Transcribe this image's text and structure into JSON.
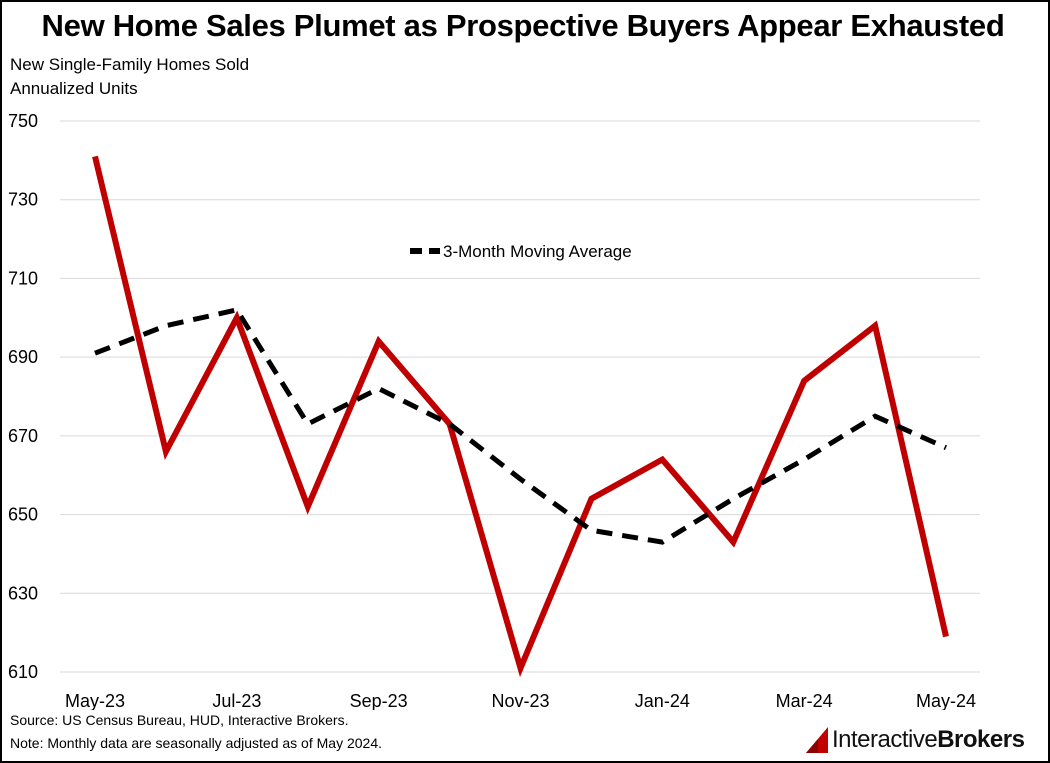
{
  "title": "New Home Sales Plumet as Prospective Buyers Appear Exhausted",
  "subtitle_lines": [
    "New Single-Family Homes Sold",
    "Annualized Units"
  ],
  "footer": {
    "source": "Source: US Census Bureau, HUD, Interactive Brokers.",
    "note": "Note: Monthly data are seasonally adjusted as of May 2024."
  },
  "logo": {
    "part1": "Interactive",
    "part2": "Brokers"
  },
  "colors": {
    "sales_line": "#c00000",
    "moving_avg_line": "#000000",
    "grid": "#d9d9d9"
  },
  "chart_data": {
    "type": "line",
    "x": [
      "May-23",
      "Jun-23",
      "Jul-23",
      "Aug-23",
      "Sep-23",
      "Oct-23",
      "Nov-23",
      "Dec-23",
      "Jan-24",
      "Feb-24",
      "Mar-24",
      "Apr-24",
      "May-24"
    ],
    "x_tick_labels": [
      "May-23",
      "Jul-23",
      "Sep-23",
      "Nov-23",
      "Jan-24",
      "Mar-24",
      "May-24"
    ],
    "ylim": [
      610,
      750
    ],
    "y_ticks": [
      610,
      630,
      650,
      670,
      690,
      710,
      730,
      750
    ],
    "grid": "horizontal",
    "legend_placement": "center",
    "series": [
      {
        "values": [
          741,
          666,
          700,
          652,
          694,
          673,
          611,
          654,
          664,
          643,
          684,
          698,
          619
        ]
      },
      {
        "name": "3-Month Moving Average",
        "values": [
          691,
          698,
          702,
          673,
          682,
          673,
          659,
          646,
          643,
          654,
          664,
          675,
          667
        ]
      }
    ]
  }
}
